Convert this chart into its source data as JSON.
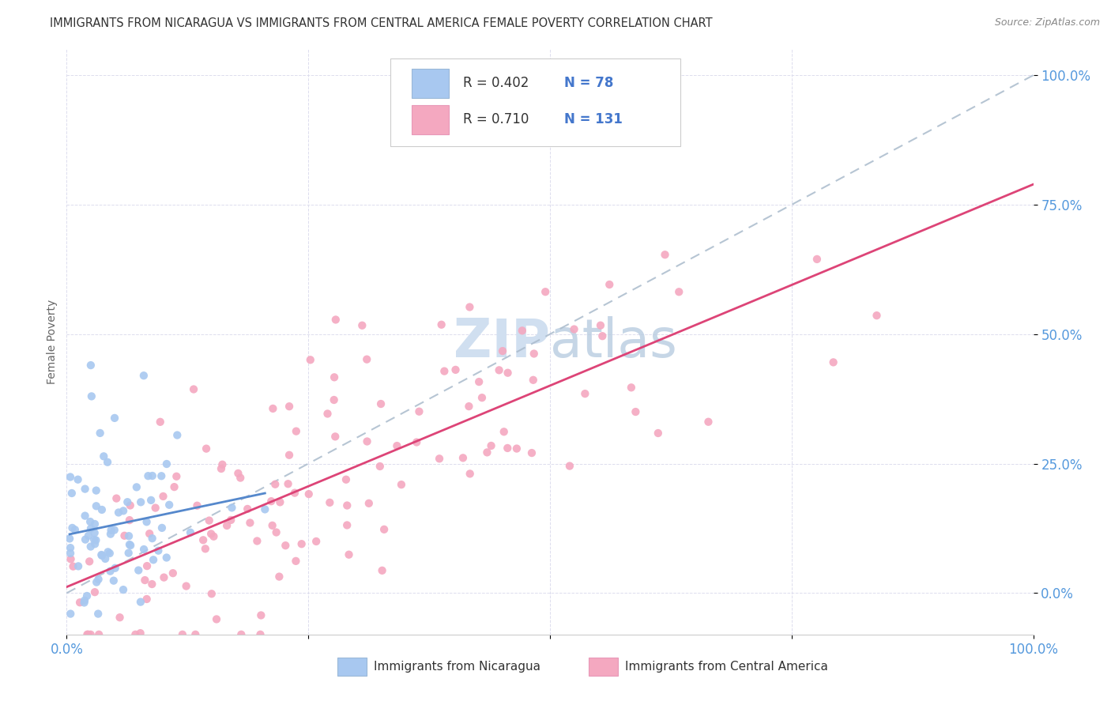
{
  "title": "IMMIGRANTS FROM NICARAGUA VS IMMIGRANTS FROM CENTRAL AMERICA FEMALE POVERTY CORRELATION CHART",
  "source": "Source: ZipAtlas.com",
  "ylabel": "Female Poverty",
  "legend_label1": "Immigrants from Nicaragua",
  "legend_label2": "Immigrants from Central America",
  "r1": 0.402,
  "n1": 78,
  "r2": 0.71,
  "n2": 131,
  "color1": "#a8c8f0",
  "color2": "#f4a8c0",
  "line1_color": "#5588cc",
  "line2_color": "#dd4477",
  "dash_color": "#aabbcc",
  "background_color": "#ffffff",
  "tick_color": "#5599dd",
  "grid_color": "#ddddee",
  "title_color": "#333333",
  "source_color": "#888888",
  "ylabel_color": "#666666",
  "watermark_color": "#d0dff0",
  "legend_text_color_R": "#333333",
  "legend_text_color_N": "#4477cc"
}
